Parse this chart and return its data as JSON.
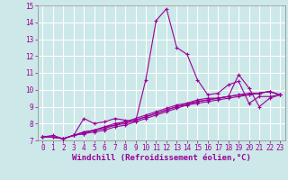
{
  "xlabel": "Windchill (Refroidissement éolien,°C)",
  "bg_color": "#cce8e8",
  "grid_color": "#ffffff",
  "line_color": "#990099",
  "xlim": [
    -0.5,
    23.5
  ],
  "ylim": [
    7,
    15
  ],
  "xticks": [
    0,
    1,
    2,
    3,
    4,
    5,
    6,
    7,
    8,
    9,
    10,
    11,
    12,
    13,
    14,
    15,
    16,
    17,
    18,
    19,
    20,
    21,
    22,
    23
  ],
  "yticks": [
    7,
    8,
    9,
    10,
    11,
    12,
    13,
    14,
    15
  ],
  "series": [
    [
      7.2,
      7.3,
      7.1,
      7.3,
      8.3,
      8.0,
      8.1,
      8.3,
      8.2,
      8.1,
      10.6,
      14.1,
      14.8,
      12.5,
      12.1,
      10.6,
      9.7,
      9.8,
      10.3,
      10.5,
      9.2,
      9.6,
      9.6,
      9.7
    ],
    [
      7.2,
      7.2,
      7.1,
      7.3,
      7.4,
      7.6,
      7.8,
      7.9,
      8.0,
      8.2,
      8.4,
      8.6,
      8.8,
      9.0,
      9.2,
      9.3,
      9.4,
      9.5,
      9.6,
      9.7,
      9.8,
      9.8,
      9.9,
      9.7
    ],
    [
      7.2,
      7.2,
      7.1,
      7.3,
      7.4,
      7.5,
      7.6,
      7.8,
      7.9,
      8.1,
      8.3,
      8.5,
      8.7,
      8.9,
      9.1,
      9.2,
      9.3,
      9.4,
      9.5,
      9.6,
      9.7,
      9.8,
      9.9,
      9.7
    ],
    [
      7.2,
      7.2,
      7.1,
      7.3,
      7.5,
      7.6,
      7.7,
      7.9,
      8.1,
      8.2,
      8.4,
      8.6,
      8.8,
      9.0,
      9.1,
      9.3,
      9.4,
      9.5,
      9.6,
      9.7,
      9.7,
      9.8,
      9.9,
      9.7
    ],
    [
      7.2,
      7.2,
      7.1,
      7.3,
      7.5,
      7.6,
      7.8,
      8.0,
      8.1,
      8.3,
      8.5,
      8.7,
      8.9,
      9.1,
      9.2,
      9.4,
      9.5,
      9.5,
      9.6,
      10.9,
      10.1,
      9.0,
      9.5,
      9.7
    ]
  ],
  "tick_fontsize": 5.5,
  "xlabel_fontsize": 6.5
}
